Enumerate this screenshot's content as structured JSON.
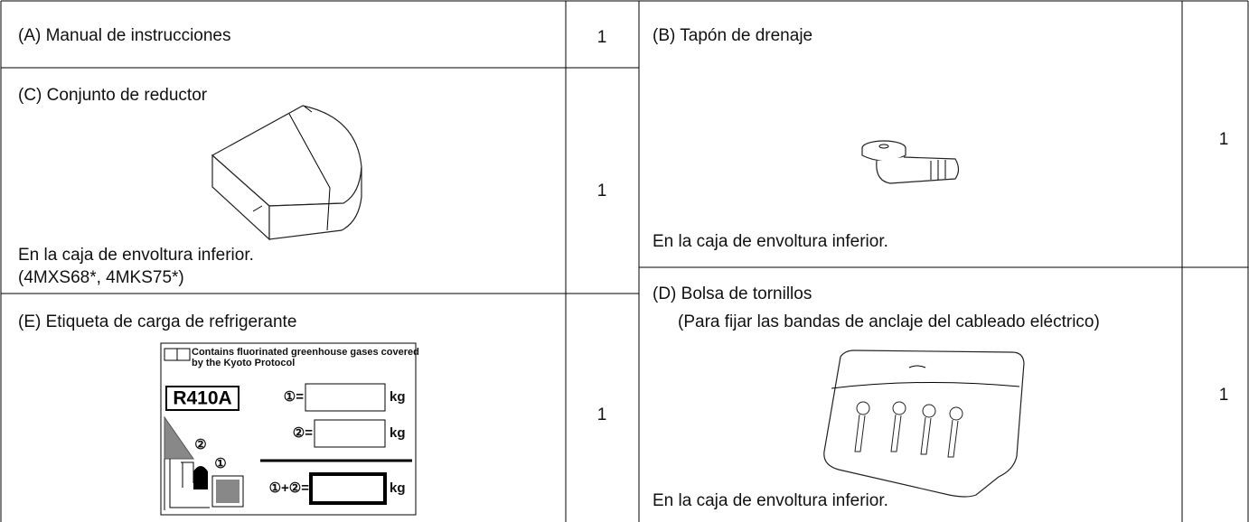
{
  "items": [
    {
      "label": "(A) Manual de instrucciones",
      "qty": 1
    },
    {
      "label": "(B) Tapón de drenaje",
      "qty": 1,
      "note": "En la caja de envoltura inferior."
    },
    {
      "label": "(C) Conjunto de reductor",
      "qty": 1,
      "note": "En la caja de envoltura inferior.",
      "models": "(4MXS68*, 4MKS75*)"
    },
    {
      "label": "(D) Bolsa de tornillos",
      "purpose": "(Para fijar las bandas de anclaje del cableado eléctrico)",
      "qty": 1,
      "note": "En la caja de envoltura inferior."
    },
    {
      "label": "(E) Etiqueta de carga de refrigerante",
      "qty": 1,
      "refrigerant_label": {
        "heading": [
          "Contains fluorinated greenhouse gases covered",
          "by the Kyoto Protocol"
        ],
        "refrigerant": "R410A",
        "fields": [
          {
            "key": "①=",
            "unit": "kg"
          },
          {
            "key": "②=",
            "unit": "kg"
          },
          {
            "key": "①+②=",
            "unit": "kg"
          }
        ],
        "markers": [
          "②",
          "①"
        ]
      }
    }
  ]
}
